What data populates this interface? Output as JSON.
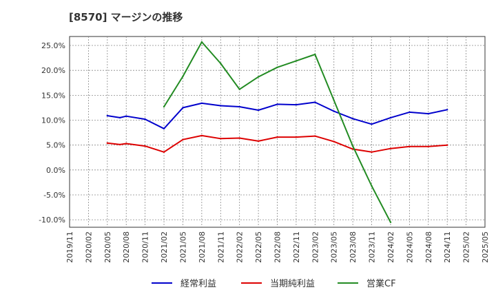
{
  "chart_data": {
    "type": "line",
    "title": "[8570]  マージンの推移",
    "x": [
      "2019/11",
      "2020/02",
      "2020/05",
      "2020/08",
      "2020/11",
      "2021/02",
      "2021/05",
      "2021/08",
      "2021/11",
      "2022/02",
      "2022/05",
      "2022/08",
      "2022/11",
      "2023/02",
      "2023/05",
      "2023/08",
      "2023/11",
      "2024/02",
      "2024/05",
      "2024/08",
      "2024/11",
      "2025/02",
      "2025/05"
    ],
    "yticks": [
      "-10.0%",
      "-5.0%",
      "0.0%",
      "5.0%",
      "10.0%",
      "15.0%",
      "20.0%",
      "25.0%"
    ],
    "ylim": [
      -11.5,
      26.8
    ],
    "grid": true,
    "legend_position": "bottom",
    "series": [
      {
        "name": "経常利益",
        "color": "#0000cc",
        "points": [
          [
            "2020/05",
            10.9
          ],
          [
            "2020/07",
            10.5
          ],
          [
            "2020/08",
            10.8
          ],
          [
            "2020/11",
            10.2
          ],
          [
            "2021/02",
            8.3
          ],
          [
            "2021/05",
            12.5
          ],
          [
            "2021/08",
            13.4
          ],
          [
            "2021/11",
            12.9
          ],
          [
            "2022/02",
            12.7
          ],
          [
            "2022/05",
            12.0
          ],
          [
            "2022/08",
            13.2
          ],
          [
            "2022/11",
            13.1
          ],
          [
            "2023/02",
            13.6
          ],
          [
            "2023/05",
            11.8
          ],
          [
            "2023/08",
            10.3
          ],
          [
            "2023/11",
            9.2
          ],
          [
            "2024/02",
            10.5
          ],
          [
            "2024/05",
            11.6
          ],
          [
            "2024/08",
            11.3
          ],
          [
            "2024/11",
            12.1
          ]
        ]
      },
      {
        "name": "当期純利益",
        "color": "#dd0000",
        "points": [
          [
            "2020/05",
            5.4
          ],
          [
            "2020/07",
            5.1
          ],
          [
            "2020/08",
            5.3
          ],
          [
            "2020/11",
            4.8
          ],
          [
            "2021/02",
            3.6
          ],
          [
            "2021/05",
            6.1
          ],
          [
            "2021/08",
            6.9
          ],
          [
            "2021/11",
            6.3
          ],
          [
            "2022/02",
            6.4
          ],
          [
            "2022/05",
            5.8
          ],
          [
            "2022/08",
            6.6
          ],
          [
            "2022/11",
            6.6
          ],
          [
            "2023/02",
            6.8
          ],
          [
            "2023/05",
            5.7
          ],
          [
            "2023/08",
            4.2
          ],
          [
            "2023/11",
            3.6
          ],
          [
            "2024/02",
            4.3
          ],
          [
            "2024/05",
            4.7
          ],
          [
            "2024/08",
            4.7
          ],
          [
            "2024/11",
            5.0
          ]
        ]
      },
      {
        "name": "営業CF",
        "color": "#228b22",
        "points": [
          [
            "2021/02",
            12.7
          ],
          [
            "2021/05",
            18.8
          ],
          [
            "2021/08",
            25.7
          ],
          [
            "2021/11",
            21.4
          ],
          [
            "2022/02",
            16.2
          ],
          [
            "2022/05",
            18.7
          ],
          [
            "2022/08",
            20.6
          ],
          [
            "2022/11",
            21.9
          ],
          [
            "2023/02",
            23.2
          ],
          [
            "2023/05",
            14.0
          ],
          [
            "2023/08",
            4.8
          ],
          [
            "2023/11",
            -3.2
          ],
          [
            "2024/02",
            -10.5
          ]
        ]
      }
    ]
  }
}
